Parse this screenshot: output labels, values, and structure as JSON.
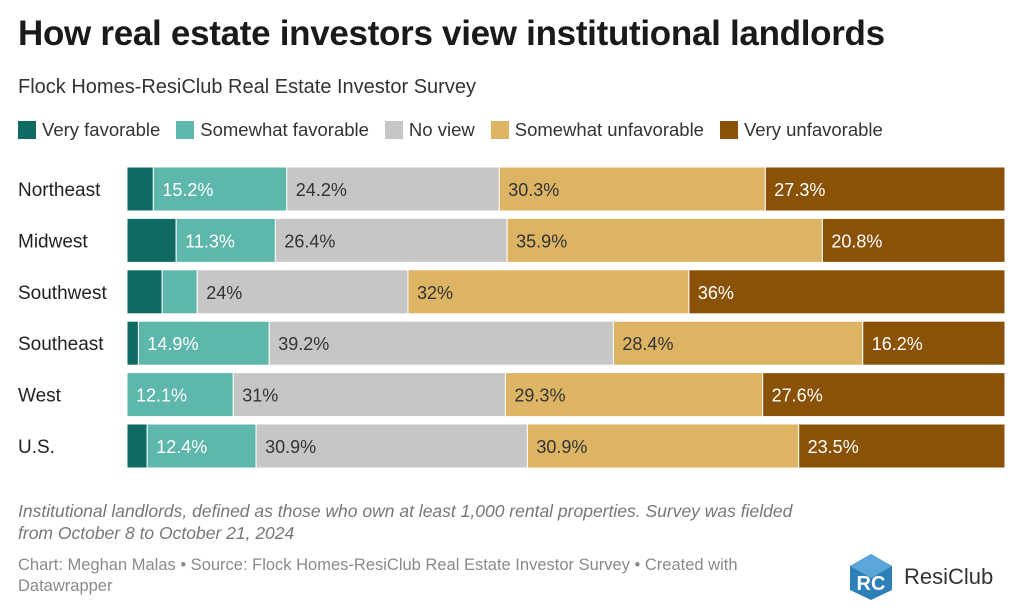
{
  "title": "How real estate investors view institutional landlords",
  "subtitle": "Flock Homes-ResiClub Real Estate Investor Survey",
  "legend": [
    {
      "label": "Very favorable",
      "color": "#0e6a62"
    },
    {
      "label": "Somewhat favorable",
      "color": "#5db7ab"
    },
    {
      "label": "No view",
      "color": "#c6c6c6"
    },
    {
      "label": "Somewhat unfavorable",
      "color": "#dcb464"
    },
    {
      "label": "Very unfavorable",
      "color": "#8a5207"
    }
  ],
  "chart_data": {
    "type": "bar",
    "orientation": "horizontal",
    "stacked": true,
    "normalized_to": 100,
    "categories": [
      "Northeast",
      "Midwest",
      "Southwest",
      "Southeast",
      "West",
      "U.S."
    ],
    "series": [
      {
        "name": "Very favorable",
        "values": [
          3.0,
          5.6,
          4.0,
          1.3,
          0,
          2.3
        ],
        "labels": [
          "",
          "",
          "",
          "",
          "",
          ""
        ]
      },
      {
        "name": "Somewhat favorable",
        "values": [
          15.2,
          11.3,
          4.0,
          14.9,
          12.1,
          12.4
        ],
        "labels": [
          "15.2%",
          "11.3%",
          "",
          "14.9%",
          "12.1%",
          "12.4%"
        ]
      },
      {
        "name": "No view",
        "values": [
          24.2,
          26.4,
          24.0,
          39.2,
          31.0,
          30.9
        ],
        "labels": [
          "24.2%",
          "26.4%",
          "24%",
          "39.2%",
          "31%",
          "30.9%"
        ]
      },
      {
        "name": "Somewhat unfavorable",
        "values": [
          30.3,
          35.9,
          32.0,
          28.4,
          29.3,
          30.9
        ],
        "labels": [
          "30.3%",
          "35.9%",
          "32%",
          "28.4%",
          "29.3%",
          "30.9%"
        ]
      },
      {
        "name": "Very unfavorable",
        "values": [
          27.3,
          20.8,
          36.0,
          16.2,
          27.6,
          23.5
        ],
        "labels": [
          "27.3%",
          "20.8%",
          "36%",
          "16.2%",
          "27.6%",
          "23.5%"
        ]
      }
    ],
    "label_colors": [
      "#ffffff",
      "#ffffff",
      "#333333",
      "#333333",
      "#ffffff"
    ]
  },
  "note": "Institutional landlords, defined as those who own at least 1,000 rental properties. Survey was fielded from October 8 to October 21, 2024",
  "credits": "Chart: Meghan Malas • Source: Flock Homes-ResiClub Real Estate Investor Survey • Created with Datawrapper",
  "logo": {
    "text": "ResiClub",
    "mark": "RC",
    "color": "#2d7fb8"
  }
}
